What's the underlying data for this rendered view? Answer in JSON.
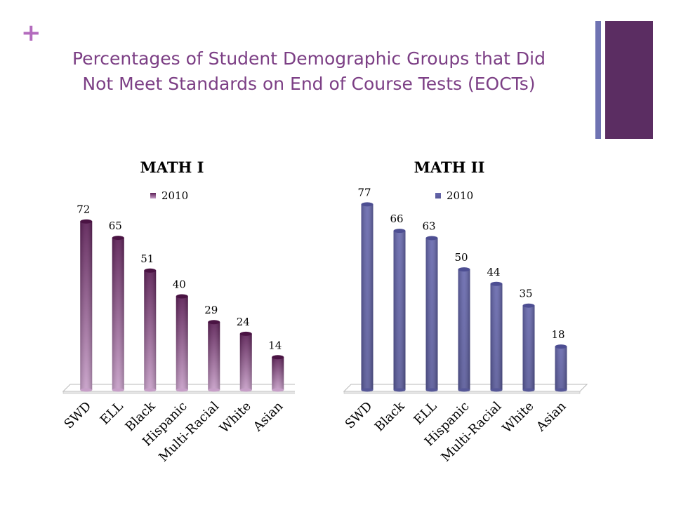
{
  "slide": {
    "plus": "+",
    "title": "Percentages of Student Demographic Groups that Did Not Meet Standards on End of Course Tests (EOCTs)"
  },
  "chart_data": [
    {
      "type": "bar",
      "title": "MATH I",
      "legend": {
        "label": "2010",
        "position": "top"
      },
      "categories": [
        "SWD",
        "ELL",
        "Black",
        "Hispanic",
        "Multi-Racial",
        "White",
        "Asian"
      ],
      "series": [
        {
          "name": "2010",
          "values": [
            72,
            65,
            51,
            40,
            29,
            24,
            14
          ]
        }
      ],
      "ylim": [
        0,
        80
      ],
      "color": "#5c1f56",
      "grid": false
    },
    {
      "type": "bar",
      "title": "MATH II",
      "legend": {
        "label": "2010",
        "position": "top"
      },
      "categories": [
        "SWD",
        "Black",
        "ELL",
        "Hispanic",
        "Multi-Racial",
        "White",
        "Asian"
      ],
      "series": [
        {
          "name": "2010",
          "values": [
            77,
            66,
            63,
            50,
            44,
            35,
            18
          ]
        }
      ],
      "ylim": [
        0,
        80
      ],
      "color": "#5d5ea4",
      "grid": false
    }
  ]
}
